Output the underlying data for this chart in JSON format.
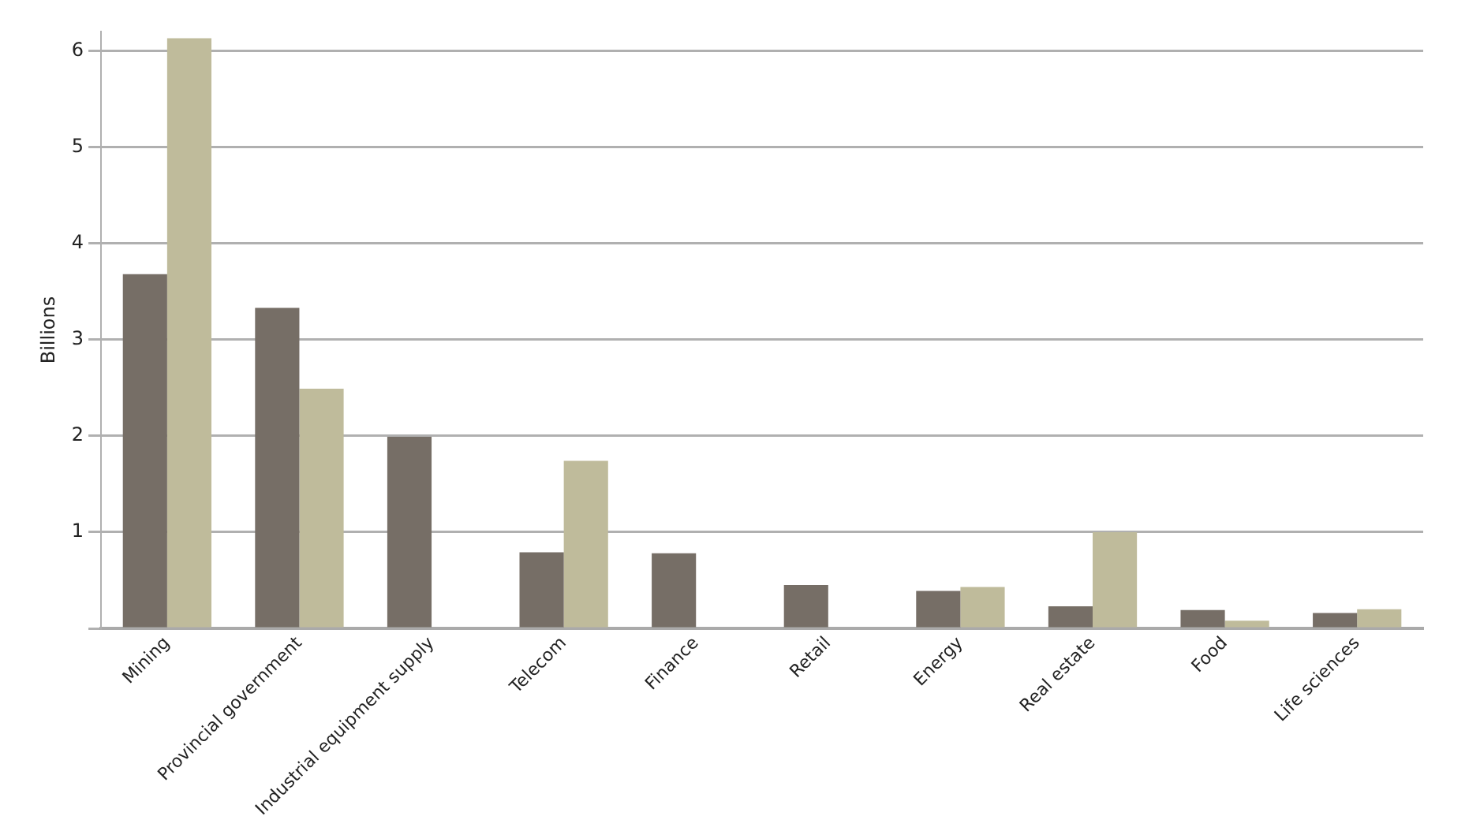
{
  "chart_data": {
    "type": "bar",
    "ylabel": "Billions",
    "categories": [
      "Mining",
      "Provincial government",
      "Industrial equipment supply",
      "Telecom",
      "Finance",
      "Retail",
      "Energy",
      "Real estate",
      "Food",
      "Life sciences"
    ],
    "series": [
      {
        "color": "#766e66",
        "values": [
          3.68,
          3.33,
          1.99,
          0.79,
          0.78,
          0.45,
          0.39,
          0.23,
          0.19,
          0.16
        ]
      },
      {
        "color": "#bfbb9b",
        "values": [
          6.13,
          2.49,
          null,
          1.74,
          null,
          null,
          0.43,
          1.0,
          0.08,
          0.2
        ]
      }
    ],
    "ylim": [
      0,
      6.2
    ],
    "yticks": [
      {
        "value": 0,
        "label": null
      },
      1,
      2,
      3,
      4,
      5,
      6
    ],
    "grid": "y",
    "legend": false
  }
}
